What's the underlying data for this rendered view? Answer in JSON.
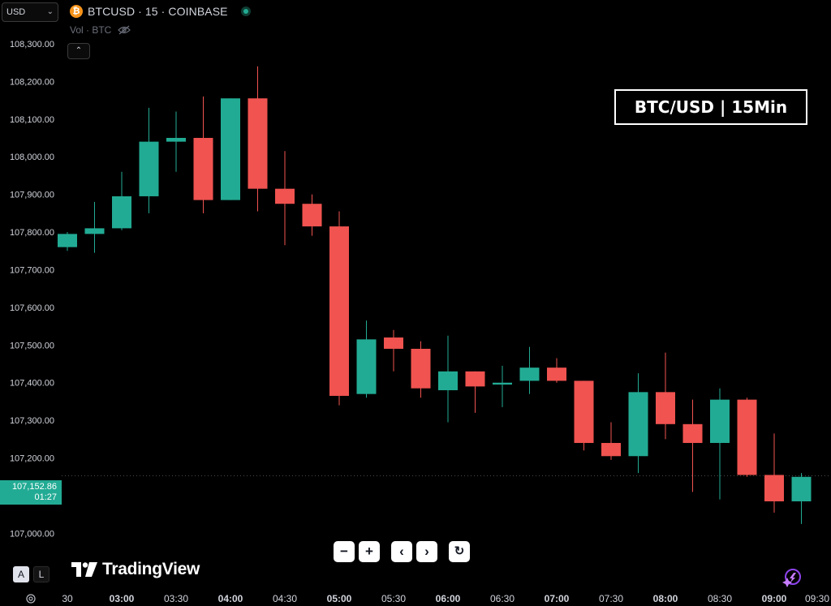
{
  "header": {
    "currency": "USD",
    "symbol": "BTCUSD · 15 · COINBASE",
    "volume_label": "Vol · BTC"
  },
  "title_box": "BTC/USD | 15Min",
  "price_tag": {
    "price": "107,152.86",
    "countdown": "01:27"
  },
  "toolbar": {
    "zoom_out": "−",
    "zoom_in": "+",
    "scroll_left": "‹",
    "scroll_right": "›",
    "reset": "↻"
  },
  "logo_text": "TradingView",
  "modes": {
    "auto": "A",
    "log": "L"
  },
  "icons": {
    "currency_dropdown": "chevron-down-icon",
    "coin": "bitcoin-icon",
    "live_status": "live-status-dot",
    "visibility": "eye-off-icon",
    "collapse": "chevron-up-icon",
    "settings": "gear-icon",
    "assistant": "sparkle-icon"
  },
  "colors": {
    "background": "#000000",
    "up": "#22ab94",
    "down": "#f05350",
    "axis_text": "#d1d4dc",
    "price_line": "#4a4a4a"
  },
  "chart_data": {
    "type": "candlestick",
    "title": "BTC/USD | 15Min",
    "interval": "15",
    "exchange": "COINBASE",
    "ylim": [
      106960,
      108330
    ],
    "y_ticks": [
      107000,
      107100,
      107200,
      107300,
      107400,
      107500,
      107600,
      107700,
      107800,
      107900,
      108000,
      108100,
      108200,
      108300
    ],
    "y_tick_labels": [
      "107,000.00",
      "107,100.00",
      "107,200.00",
      "107,300.00",
      "107,400.00",
      "107,500.00",
      "107,600.00",
      "107,700.00",
      "107,800.00",
      "107,900.00",
      "108,000.00",
      "108,100.00",
      "108,200.00",
      "108,300.00"
    ],
    "x_ticks": [
      {
        "label": "30",
        "index": -0.4,
        "bold": false
      },
      {
        "label": "03:00",
        "index": 2,
        "bold": true
      },
      {
        "label": "03:30",
        "index": 4,
        "bold": false
      },
      {
        "label": "04:00",
        "index": 6,
        "bold": true
      },
      {
        "label": "04:30",
        "index": 8,
        "bold": false
      },
      {
        "label": "05:00",
        "index": 10,
        "bold": true
      },
      {
        "label": "05:30",
        "index": 12,
        "bold": false
      },
      {
        "label": "06:00",
        "index": 14,
        "bold": true
      },
      {
        "label": "06:30",
        "index": 16,
        "bold": false
      },
      {
        "label": "07:00",
        "index": 18,
        "bold": true
      },
      {
        "label": "07:30",
        "index": 20,
        "bold": false
      },
      {
        "label": "08:00",
        "index": 22,
        "bold": true
      },
      {
        "label": "08:30",
        "index": 24,
        "bold": false
      },
      {
        "label": "09:00",
        "index": 26,
        "bold": true
      },
      {
        "label": "09:30",
        "index": 28,
        "bold": false
      }
    ],
    "candles": [
      {
        "time": "02:30",
        "open": 107760,
        "high": 107800,
        "low": 107750,
        "close": 107795
      },
      {
        "time": "02:45",
        "open": 107795,
        "high": 107880,
        "low": 107745,
        "close": 107810
      },
      {
        "time": "03:00",
        "open": 107810,
        "high": 107960,
        "low": 107805,
        "close": 107895
      },
      {
        "time": "03:15",
        "open": 107895,
        "high": 108130,
        "low": 107850,
        "close": 108040
      },
      {
        "time": "03:30",
        "open": 108040,
        "high": 108120,
        "low": 107960,
        "close": 108050
      },
      {
        "time": "03:45",
        "open": 108050,
        "high": 108160,
        "low": 107850,
        "close": 107885
      },
      {
        "time": "04:00",
        "open": 107885,
        "high": 108155,
        "low": 107885,
        "close": 108155
      },
      {
        "time": "04:15",
        "open": 108155,
        "high": 108240,
        "low": 107855,
        "close": 107915
      },
      {
        "time": "04:30",
        "open": 107915,
        "high": 108015,
        "low": 107765,
        "close": 107875
      },
      {
        "time": "04:45",
        "open": 107875,
        "high": 107900,
        "low": 107790,
        "close": 107815
      },
      {
        "time": "05:00",
        "open": 107815,
        "high": 107855,
        "low": 107340,
        "close": 107365
      },
      {
        "time": "05:15",
        "open": 107370,
        "high": 107565,
        "low": 107360,
        "close": 107515
      },
      {
        "time": "05:30",
        "open": 107520,
        "high": 107540,
        "low": 107430,
        "close": 107490
      },
      {
        "time": "05:45",
        "open": 107490,
        "high": 107510,
        "low": 107360,
        "close": 107385
      },
      {
        "time": "06:00",
        "open": 107380,
        "high": 107525,
        "low": 107295,
        "close": 107430
      },
      {
        "time": "06:15",
        "open": 107430,
        "high": 107430,
        "low": 107320,
        "close": 107390
      },
      {
        "time": "06:30",
        "open": 107395,
        "high": 107445,
        "low": 107335,
        "close": 107400
      },
      {
        "time": "06:45",
        "open": 107405,
        "high": 107495,
        "low": 107370,
        "close": 107440
      },
      {
        "time": "07:00",
        "open": 107440,
        "high": 107465,
        "low": 107400,
        "close": 107405
      },
      {
        "time": "07:15",
        "open": 107405,
        "high": 107405,
        "low": 107220,
        "close": 107240
      },
      {
        "time": "07:30",
        "open": 107240,
        "high": 107295,
        "low": 107195,
        "close": 107205
      },
      {
        "time": "07:45",
        "open": 107205,
        "high": 107425,
        "low": 107160,
        "close": 107375
      },
      {
        "time": "08:00",
        "open": 107375,
        "high": 107480,
        "low": 107250,
        "close": 107290
      },
      {
        "time": "08:15",
        "open": 107290,
        "high": 107355,
        "low": 107110,
        "close": 107240
      },
      {
        "time": "08:30",
        "open": 107240,
        "high": 107385,
        "low": 107090,
        "close": 107355
      },
      {
        "time": "08:45",
        "open": 107355,
        "high": 107360,
        "low": 107150,
        "close": 107155
      },
      {
        "time": "09:00",
        "open": 107155,
        "high": 107265,
        "low": 107055,
        "close": 107085
      },
      {
        "time": "09:15",
        "open": 107085,
        "high": 107160,
        "low": 107025,
        "close": 107150
      }
    ],
    "last_price": 107152.86
  }
}
